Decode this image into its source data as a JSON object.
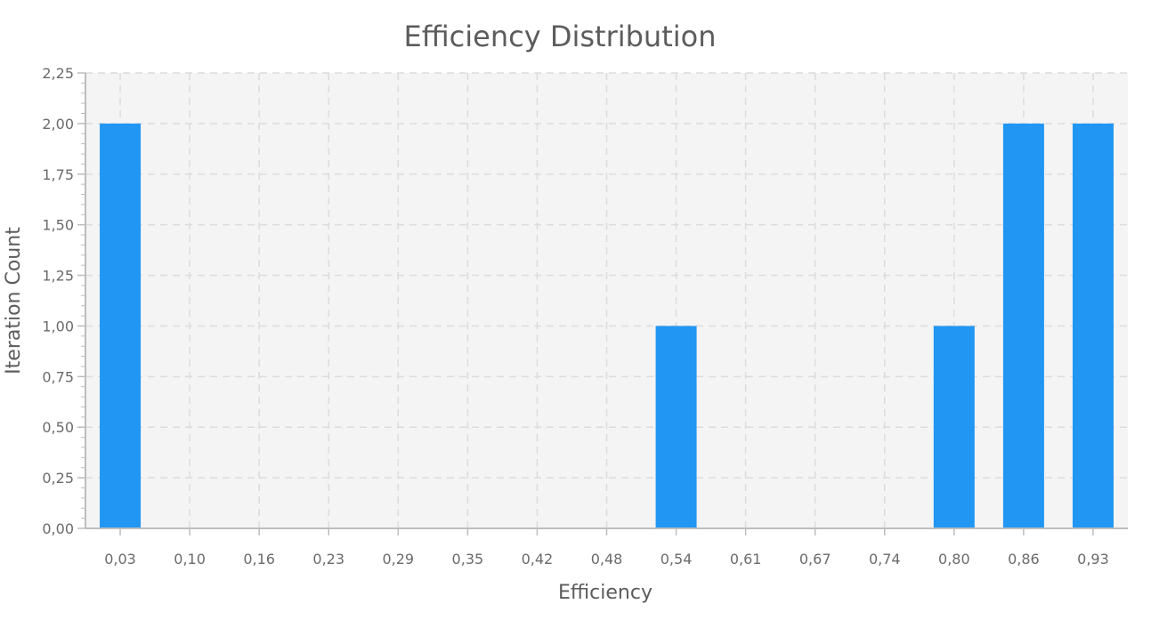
{
  "chart_data": {
    "type": "bar",
    "title": "Efficiency Distribution",
    "xlabel": "Efficiency",
    "ylabel": "Iteration Count",
    "categories": [
      "0,03",
      "0,10",
      "0,16",
      "0,23",
      "0,29",
      "0,35",
      "0,42",
      "0,48",
      "0,54",
      "0,61",
      "0,67",
      "0,74",
      "0,80",
      "0,86",
      "0,93"
    ],
    "values": [
      2,
      0,
      0,
      0,
      0,
      0,
      0,
      0,
      1,
      0,
      0,
      0,
      1,
      2,
      2
    ],
    "y_ticks": [
      "0,00",
      "0,25",
      "0,50",
      "0,75",
      "1,00",
      "1,25",
      "1,50",
      "1,75",
      "2,00",
      "2,25"
    ],
    "ylim": [
      0,
      2.25
    ],
    "grid": true,
    "legend": "none",
    "colors": {
      "bar": "#2196F3",
      "plot_background": "#f4f4f4",
      "grid": "#dcdcdc",
      "axis": "#bdbdbd"
    }
  }
}
